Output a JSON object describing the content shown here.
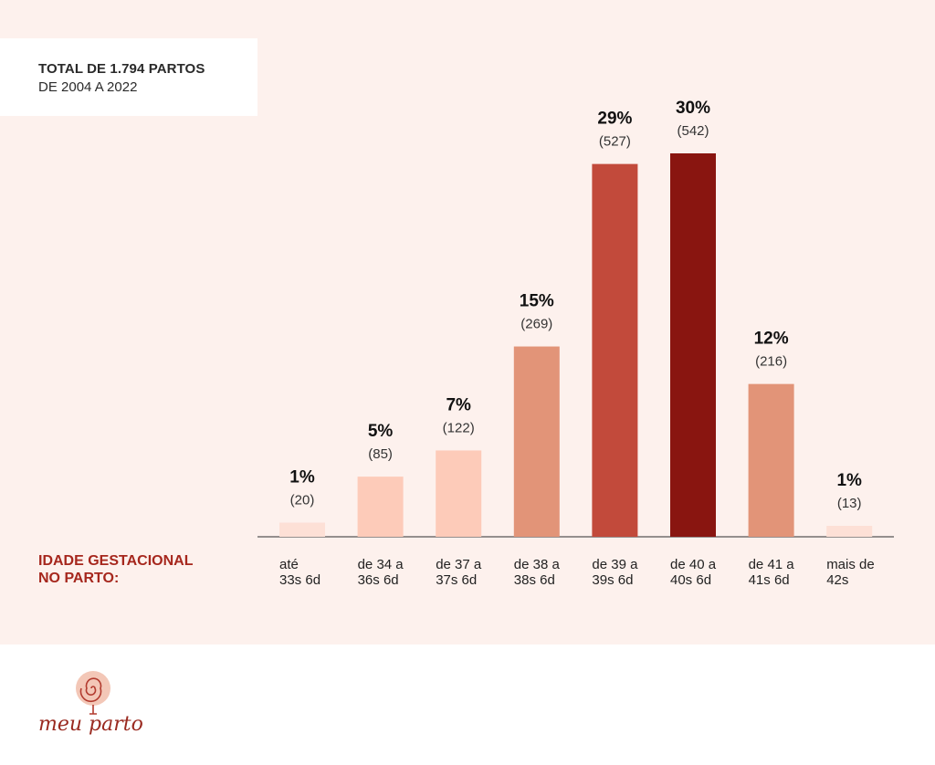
{
  "header": {
    "title_line1": "TOTAL DE 1.794 PARTOS",
    "title_line2": "DE 2004 A 2022"
  },
  "axis": {
    "x_label_line1": "IDADE GESTACIONAL",
    "x_label_line2": "NO PARTO:"
  },
  "chart_data": {
    "type": "bar",
    "categories": [
      "até\n33s 6d",
      "de 34 a\n36s 6d",
      "de 37 a\n37s 6d",
      "de 38 a\n38s 6d",
      "de 39 a\n39s 6d",
      "de 40 a\n40s 6d",
      "de 41 a\n41s 6d",
      "mais de\n42s"
    ],
    "values": [
      1,
      5,
      7,
      15,
      29,
      30,
      12,
      1
    ],
    "percent_labels": [
      "1%",
      "5%",
      "7%",
      "15%",
      "29%",
      "30%",
      "12%",
      "1%"
    ],
    "count_labels": [
      "(20)",
      "(85)",
      "(122)",
      "(269)",
      "(527)",
      "(542)",
      "(216)",
      "(13)"
    ],
    "counts": [
      20,
      85,
      122,
      269,
      527,
      542,
      216,
      13
    ],
    "bar_colors": [
      "#fde0d6",
      "#fdcbb9",
      "#fdcbb9",
      "#e29478",
      "#c24a3b",
      "#891510",
      "#e29478",
      "#fde0d6"
    ],
    "ylim": [
      0,
      542
    ]
  },
  "logo": {
    "text": "meu parto"
  },
  "colors": {
    "panel_background": "#fdf1ed",
    "accent": "#a6271d",
    "text": "#222222"
  }
}
